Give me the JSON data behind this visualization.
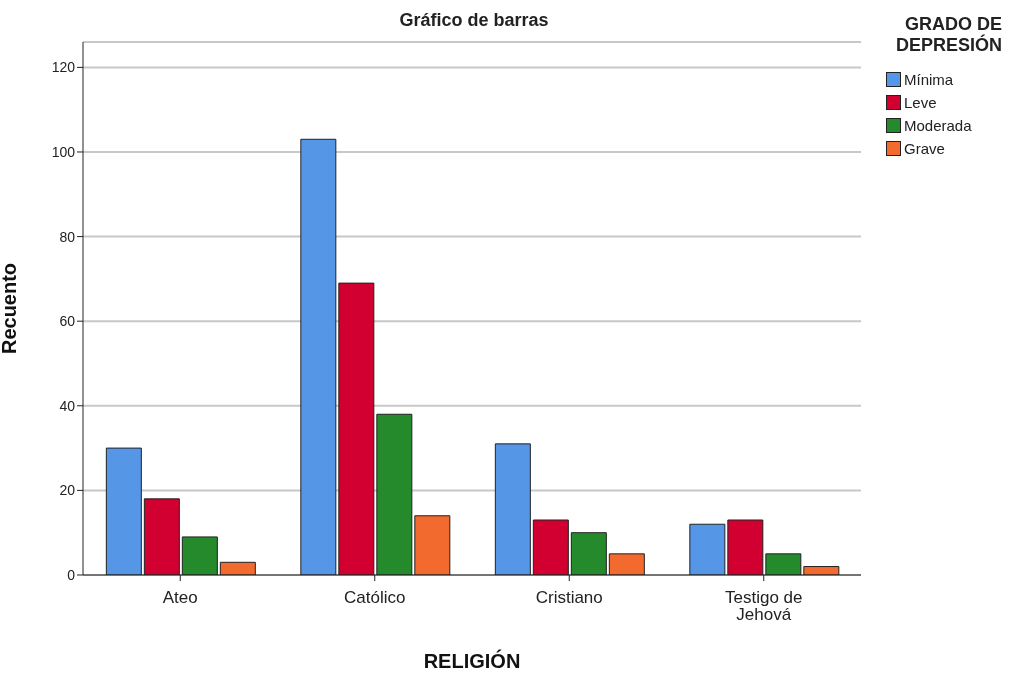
{
  "chart_data": {
    "type": "bar",
    "title": "Gráfico de barras",
    "xlabel": "RELIGIÓN",
    "ylabel": "Recuento",
    "legend_title": "GRADO DE DEPRESIÓN",
    "categories": [
      "Ateo",
      "Católico",
      "Cristiano",
      "Testigo de Jehová"
    ],
    "series": [
      {
        "name": "Mínima",
        "color": "#5597e6",
        "values": [
          30,
          103,
          31,
          12
        ]
      },
      {
        "name": "Leve",
        "color": "#d20030",
        "values": [
          18,
          69,
          13,
          13
        ]
      },
      {
        "name": "Moderada",
        "color": "#258a2b",
        "values": [
          9,
          38,
          10,
          5
        ]
      },
      {
        "name": "Grave",
        "color": "#f26a2e",
        "values": [
          3,
          14,
          5,
          2
        ]
      }
    ],
    "ylim": [
      0,
      126
    ],
    "yticks": [
      0,
      20,
      40,
      60,
      80,
      100,
      120
    ],
    "grid": "y",
    "legend": "top right"
  }
}
